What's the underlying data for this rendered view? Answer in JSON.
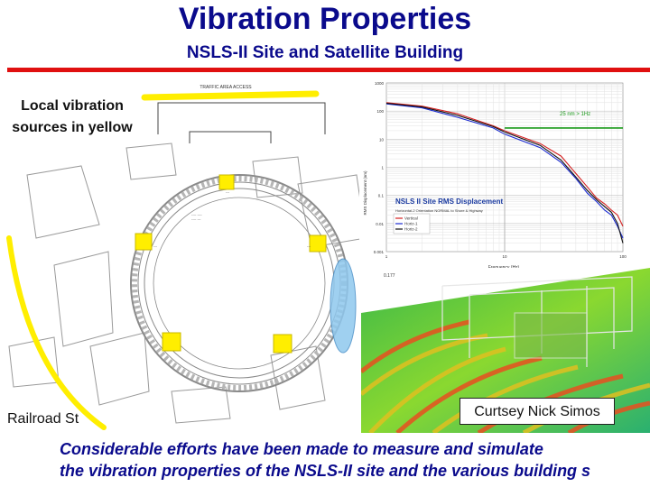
{
  "slide": {
    "title": "Vibration Properties",
    "subtitle": "NSLS-II Site and Satellite Building",
    "left_label": "Local vibration sources in yellow",
    "railroad_label": "Railroad St",
    "credit": "Curtsey Nick Simos",
    "footer_line1": "Considerable efforts have been made to measure and simulate",
    "footer_line2": "the vibration properties of the NSLS-II site and the various building s"
  },
  "colors": {
    "title": "#0a0a8c",
    "accent_line": "#e01010",
    "vibration_source": "#ffee00",
    "series_vertical": "#d42020",
    "series_horiz1": "#1a2ad0",
    "series_horiz2": "#111111",
    "threshold": "#1a9a1a",
    "chart_title": "#1a3aa0"
  },
  "site_plan": {
    "top_label": "TRAFFIC AREA ACCESS"
  },
  "chart_data": {
    "type": "line",
    "title": "NSLS II Site RMS Displacement",
    "subtitle": "Horizontal-2 Orientation NORMAL to Shore & Highway",
    "xlabel": "Frequency (Hz)",
    "ylabel": "RMS Displacement (nm)",
    "xscale": "log",
    "yscale": "log",
    "xlim": [
      1,
      100
    ],
    "ylim": [
      0.001,
      1000
    ],
    "x_ticks": [
      "1",
      "10",
      "100"
    ],
    "y_ticks": [
      "1000",
      "100",
      "10",
      "1",
      "0.1",
      "0.01",
      "0.001"
    ],
    "annotation": "25 nm > 1Hz",
    "threshold": {
      "value": 25,
      "x_start": 10,
      "x_end": 100
    },
    "legend_position": "bottom-left",
    "series": [
      {
        "name": "Vertical",
        "x": [
          1,
          2,
          4,
          8,
          10,
          20,
          30,
          40,
          50,
          60,
          70,
          80,
          90,
          100
        ],
        "y": [
          200,
          150,
          80,
          30,
          20,
          7,
          2.5,
          0.6,
          0.2,
          0.08,
          0.05,
          0.03,
          0.02,
          0.008
        ]
      },
      {
        "name": "Horiz-1",
        "x": [
          1,
          2,
          4,
          8,
          10,
          20,
          30,
          40,
          50,
          60,
          70,
          80,
          90,
          100
        ],
        "y": [
          180,
          130,
          60,
          25,
          15,
          5,
          1.5,
          0.4,
          0.12,
          0.06,
          0.03,
          0.02,
          0.008,
          0.003
        ]
      },
      {
        "name": "Horiz-2",
        "x": [
          1,
          2,
          4,
          8,
          10,
          20,
          30,
          40,
          50,
          60,
          70,
          80,
          90,
          100
        ],
        "y": [
          190,
          140,
          70,
          28,
          18,
          6,
          1.8,
          0.45,
          0.15,
          0.07,
          0.04,
          0.025,
          0.01,
          0.002
        ]
      }
    ]
  }
}
